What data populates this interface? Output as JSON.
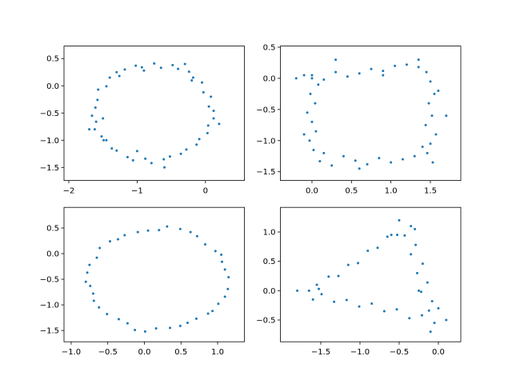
{
  "chart_data": [
    {
      "type": "scatter",
      "color": "#1f77b4",
      "x": [
        0.12,
        0.05,
        0.08,
        -0.03,
        -0.05,
        -0.18,
        -0.24,
        -0.4,
        -0.48,
        -0.65,
        -0.75,
        -0.93,
        -1.02,
        -1.18,
        -1.26,
        -1.4,
        -1.45,
        -1.57,
        -1.58,
        -1.61,
        -1.66,
        -1.6,
        -1.62,
        -1.52,
        -1.49,
        -1.37,
        -1.3,
        -1.14,
        -1.06,
        -0.88,
        -0.79,
        -0.61,
        -0.52,
        -0.36,
        -0.28,
        -0.13,
        -0.09,
        0.03,
        0.04,
        0.12,
        -1.5,
        -1.3,
        -0.3,
        -0.6,
        0.2,
        -1.7,
        -1.0,
        -0.2,
        -1.45,
        -0.9
      ],
      "y": [
        -0.46,
        -0.38,
        -0.2,
        -0.12,
        0.06,
        0.15,
        0.26,
        0.31,
        0.38,
        0.33,
        0.41,
        0.34,
        0.37,
        0.3,
        0.18,
        0.15,
        -0.01,
        -0.07,
        -0.26,
        -0.4,
        -0.55,
        -0.66,
        -0.8,
        -0.93,
        -1.0,
        -1.15,
        -1.19,
        -1.31,
        -1.37,
        -1.34,
        -1.42,
        -1.35,
        -1.3,
        -1.25,
        -1.17,
        -1.08,
        -0.98,
        -0.87,
        -0.73,
        -0.6,
        -0.6,
        0.25,
        0.4,
        -1.5,
        -0.7,
        -0.8,
        -1.2,
        0.1,
        -1.0,
        0.28
      ],
      "xlim": [
        -2.07,
        0.57
      ],
      "ylim": [
        -1.74,
        0.73
      ],
      "xticks": [
        {
          "value": -2,
          "label": "−2"
        },
        {
          "value": -1,
          "label": "−1"
        },
        0
      ],
      "yticks": [
        {
          "value": -1.5,
          "label": "−1.5"
        },
        {
          "value": -1,
          "label": "−1.0"
        },
        {
          "value": -0.5,
          "label": "−0.5"
        },
        {
          "value": 0,
          "label": "0.0"
        },
        0.5
      ]
    },
    {
      "type": "scatter",
      "color": "#1f77b4",
      "x": [
        0.0,
        0.15,
        0.3,
        0.45,
        0.6,
        0.75,
        0.9,
        1.05,
        1.2,
        1.35,
        1.45,
        1.5,
        1.55,
        1.48,
        1.52,
        1.44,
        1.57,
        1.5,
        1.46,
        1.53,
        1.3,
        1.15,
        1.0,
        0.85,
        0.7,
        0.55,
        0.4,
        0.25,
        0.1,
        0.02,
        -0.03,
        0.05,
        0.0,
        -0.06,
        0.04,
        -0.02,
        0.08,
        0.0,
        -0.1,
        -0.2,
        0.3,
        1.7,
        -0.1,
        0.6,
        1.35,
        1.6,
        0.9,
        0.15,
        1.4
      ],
      "y": [
        0.05,
        -0.02,
        0.1,
        0.03,
        0.08,
        0.15,
        0.12,
        0.2,
        0.22,
        0.18,
        0.1,
        -0.05,
        -0.25,
        -0.4,
        -0.6,
        -0.75,
        -0.9,
        -1.05,
        -1.2,
        -1.35,
        -1.25,
        -1.3,
        -1.35,
        -1.28,
        -1.38,
        -1.32,
        -1.25,
        -1.4,
        -1.33,
        -1.15,
        -1.0,
        -0.85,
        -0.7,
        -0.55,
        -0.4,
        -0.25,
        -0.1,
        0.0,
        0.05,
        0.0,
        0.3,
        -0.6,
        -0.9,
        -1.45,
        0.3,
        -0.2,
        0.05,
        -1.2,
        -1.1
      ],
      "xlim": [
        -0.4,
        1.885
      ],
      "ylim": [
        -1.64,
        0.518
      ],
      "xticks": [
        {
          "value": 0,
          "label": "0.0"
        },
        0.5,
        {
          "value": 1,
          "label": "1.0"
        },
        1.5
      ],
      "yticks": [
        {
          "value": -1.5,
          "label": "−1.5"
        },
        {
          "value": -1,
          "label": "−1.0"
        },
        {
          "value": -0.5,
          "label": "−0.5"
        },
        {
          "value": 0,
          "label": "0.0"
        },
        0.5
      ]
    },
    {
      "type": "scatter",
      "color": "#1f77b4",
      "x": [
        1.15,
        1.06,
        0.97,
        0.72,
        0.49,
        0.2,
        -0.09,
        -0.36,
        -0.61,
        -0.75,
        -0.8,
        -0.7,
        -0.62,
        -0.35,
        -0.13,
        0.16,
        0.49,
        0.71,
        0.93,
        1.1,
        1.1,
        1.05,
        0.83,
        0.63,
        0.31,
        0.05,
        -0.27,
        -0.47,
        -0.65,
        -0.78,
        -0.74,
        -0.69,
        -0.51,
        -0.23,
        0.01,
        0.35,
        0.59,
        0.87,
        1.01,
        1.14
      ],
      "y": [
        -0.46,
        -0.16,
        0.05,
        0.34,
        0.48,
        0.46,
        0.42,
        0.28,
        0.11,
        -0.22,
        -0.55,
        -0.78,
        -1.05,
        -1.28,
        -1.49,
        -1.46,
        -1.41,
        -1.27,
        -1.12,
        -0.84,
        -0.31,
        -0.02,
        0.18,
        0.42,
        0.53,
        0.45,
        0.36,
        0.24,
        -0.08,
        -0.37,
        -0.63,
        -0.92,
        -1.18,
        -1.36,
        -1.52,
        -1.45,
        -1.35,
        -1.17,
        -0.98,
        -0.69
      ],
      "xlim": [
        -1.098,
        1.366
      ],
      "ylim": [
        -1.72,
        0.903
      ],
      "xticks": [
        {
          "value": -1,
          "label": "−1.0"
        },
        {
          "value": -0.5,
          "label": "−0.5"
        },
        {
          "value": 0,
          "label": "0.0"
        },
        0.5,
        {
          "value": 1,
          "label": "1.0"
        }
      ],
      "yticks": [
        {
          "value": -1.5,
          "label": "−1.5"
        },
        {
          "value": -1,
          "label": "−1.0"
        },
        {
          "value": -0.5,
          "label": "−0.5"
        },
        {
          "value": 0,
          "label": "0.0"
        },
        0.5
      ]
    },
    {
      "type": "scatter",
      "color": "#1f77b4",
      "x": [
        -1.65,
        -1.525,
        -1.4,
        -1.275,
        -1.15,
        -1.025,
        -0.9,
        -0.775,
        -0.65,
        -0.525,
        -0.35,
        -0.43,
        -0.29,
        -0.35,
        -0.2,
        -0.27,
        -0.14,
        -0.22,
        -0.08,
        -0.12,
        -0.05,
        -0.21,
        -0.37,
        -0.53,
        -0.69,
        -0.85,
        -1.01,
        -1.17,
        -1.33,
        -1.49,
        -1.8,
        -1.55,
        -0.5,
        -0.3,
        0.1,
        -0.1,
        0.0,
        -1.6,
        -0.6,
        -0.25
      ],
      "y": [
        0.0,
        0.03,
        0.24,
        0.25,
        0.44,
        0.47,
        0.68,
        0.73,
        0.92,
        0.95,
        1.1,
        0.94,
        0.78,
        0.62,
        0.46,
        0.3,
        0.14,
        -0.02,
        -0.18,
        -0.34,
        -0.55,
        -0.42,
        -0.47,
        -0.32,
        -0.35,
        -0.22,
        -0.27,
        -0.16,
        -0.19,
        -0.06,
        0.0,
        0.1,
        1.2,
        1.05,
        -0.5,
        -0.7,
        -0.3,
        -0.15,
        0.95,
        0.0
      ],
      "xlim": [
        -2.015,
        0.286
      ],
      "ylim": [
        -0.871,
        1.42
      ],
      "xticks": [
        {
          "value": -1.5,
          "label": "−1.5"
        },
        {
          "value": -1,
          "label": "−1.0"
        },
        {
          "value": -0.5,
          "label": "−0.5"
        },
        {
          "value": 0,
          "label": "0.0"
        }
      ],
      "yticks": [
        {
          "value": -0.5,
          "label": "−0.5"
        },
        {
          "value": 0,
          "label": "0.0"
        },
        0.5,
        {
          "value": 1,
          "label": "1.0"
        }
      ]
    }
  ]
}
